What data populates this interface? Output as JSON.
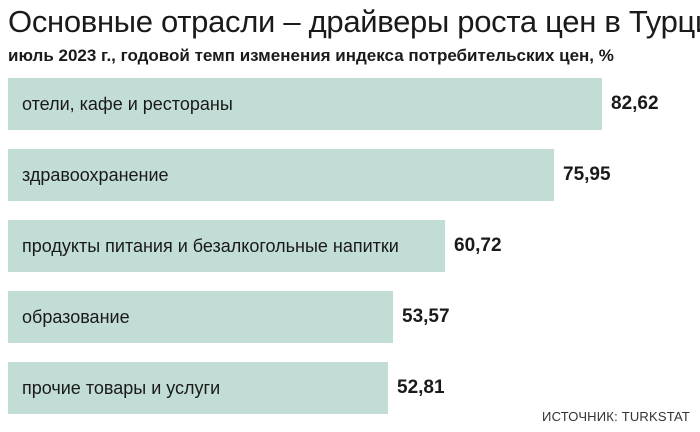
{
  "chart_data": {
    "type": "bar",
    "orientation": "horizontal",
    "title": "Основные отрасли – драйверы роста цен в Турции",
    "subtitle": "июль 2023 г., годовой темп изменения индекса потребительских цен, %",
    "categories": [
      "отели, кафе и рестораны",
      "здравоохранение",
      "продукты питания и безалкогольные напитки",
      "образование",
      "прочие товары и услуги"
    ],
    "values": [
      82.62,
      75.95,
      60.72,
      53.57,
      52.81
    ],
    "value_labels": [
      "82,62",
      "75,95",
      "60,72",
      "53,57",
      "52,81"
    ],
    "bar_color": "#c2dcd6",
    "grid": false,
    "legend": "none",
    "source": "ИСТОЧНИК: TURKSTAT"
  }
}
